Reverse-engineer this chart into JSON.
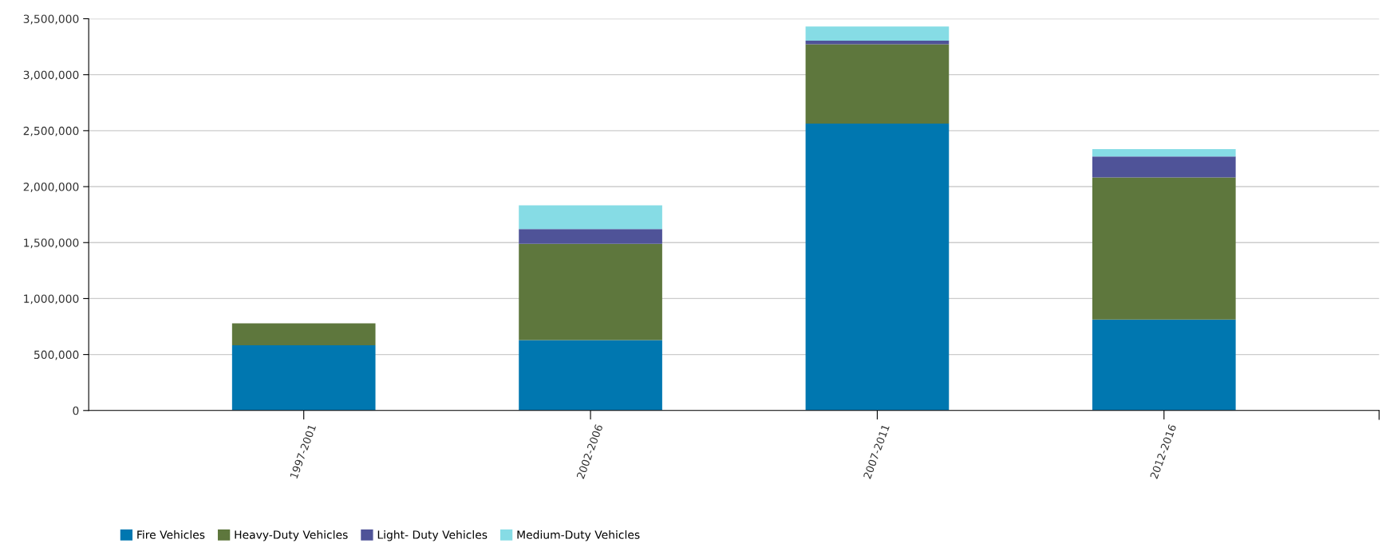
{
  "chart_data": {
    "type": "bar",
    "stacked": true,
    "categories": [
      "1997-2001",
      "2002-2006",
      "2007-2011",
      "2012-2016"
    ],
    "series": [
      {
        "name": "Fire Vehicles",
        "color": "#0077b0",
        "values": [
          583000,
          629000,
          2563000,
          813000
        ]
      },
      {
        "name": "Heavy-Duty Vehicles",
        "color": "#5e773d",
        "values": [
          196000,
          861000,
          709000,
          1270000
        ]
      },
      {
        "name": "Light- Duty Vehicles",
        "color": "#4f5398",
        "values": [
          0,
          131000,
          32000,
          186000
        ]
      },
      {
        "name": "Medium-Duty Vehicles",
        "color": "#86dce5",
        "values": [
          0,
          212000,
          126000,
          66000
        ]
      }
    ],
    "ylim": [
      0,
      3500000
    ],
    "yticks": [
      {
        "value": 0,
        "label": "0"
      },
      {
        "value": 500000,
        "label": "500,000"
      },
      {
        "value": 1000000,
        "label": "1,000,000"
      },
      {
        "value": 1500000,
        "label": "1,500,000"
      },
      {
        "value": 2000000,
        "label": "2,000,000"
      },
      {
        "value": 2500000,
        "label": "2,500,000"
      },
      {
        "value": 3000000,
        "label": "3,000,000"
      },
      {
        "value": 3500000,
        "label": "3,500,000"
      }
    ],
    "grid": "y",
    "legend": "bottom left"
  }
}
